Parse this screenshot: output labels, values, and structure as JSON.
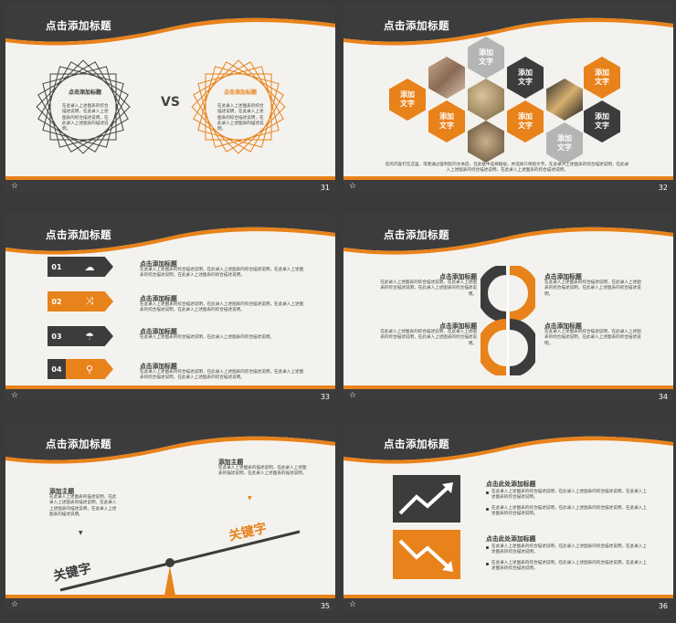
{
  "colors": {
    "accent": "#e8821a",
    "dark": "#3c3c3c",
    "bg": "#f4f2ee",
    "page": "#3a3a3a"
  },
  "slides": [
    {
      "number": "31",
      "title": "点击添加标题",
      "left_heading": "点击添加标题",
      "left_text": "在此录入上述图表的综合描述说明，在此录入上述图表的综合描述说明，在此录入上述图表的描述说明。",
      "vs": "VS",
      "right_heading": "点击添加标题",
      "right_text": "在此录入上述图表的综合描述说明，在此录入上述图表的综合描述说明，在此录入上述图表的描述说明。"
    },
    {
      "number": "32",
      "title": "点击添加标题",
      "hex_label": "添加\n文字",
      "caption": "您的内容打在这里，或者通过复制您的文本后，在此框中选择粘贴，并选择只保留文字。在此录入上述图表的综合描述说明，在此录入上述图表的综合描述说明，在此录入上述图表的综合描述说明。"
    },
    {
      "number": "33",
      "title": "点击添加标题",
      "items": [
        {
          "num": "01",
          "icon": "cloud-icon",
          "heading": "点击添加标题",
          "text": "在此录入上述图表的综合描述说明，在此录入上述图表的综合描述说明，在此录入上述图表的综合描述说明，在此录入上述图表的综合描述说明。"
        },
        {
          "num": "02",
          "icon": "shuffle-icon",
          "heading": "点击添加标题",
          "text": "在此录入上述图表的综合描述说明，在此录入上述图表的综合描述说明，在此录入上述图表的综合描述说明，在此录入上述图表的综合描述说明。"
        },
        {
          "num": "03",
          "icon": "umbrella-icon",
          "heading": "点击添加标题",
          "text": "在此录入上述图表的综合描述说明，在此录入上述图表的综合描述说明。"
        },
        {
          "num": "04",
          "icon": "search-icon",
          "heading": "点击添加标题",
          "text": "在此录入上述图表的综合描述说明，在此录入上述图表的综合描述说明，在此录入上述图表的综合描述说明，在此录入上述图表的综合描述说明。"
        }
      ]
    },
    {
      "number": "34",
      "title": "点击添加标题",
      "blocks": [
        {
          "heading": "点击添加标题",
          "text": "在此录入上述图表的综合描述说明，在此录入上述图表的综合描述说明，在此录入上述图表的综合描述说明。"
        },
        {
          "heading": "点击添加标题",
          "text": "在此录入上述图表的综合描述说明，在此录入上述图表的综合描述说明，在此录入上述图表的综合描述说明。"
        },
        {
          "heading": "点击添加标题",
          "text": "在此录入上述图表的综合描述说明，在此录入上述图表的综合描述说明，在此录入上述图表的综合描述说明。"
        },
        {
          "heading": "点击添加标题",
          "text": "在此录入上述图表的综合描述说明，在此录入上述图表的综合描述说明，在此录入上述图表的综合描述说明。"
        }
      ]
    },
    {
      "number": "35",
      "title": "点击添加标题",
      "left_heading": "添加主题",
      "left_text": "在此录入上述图表的描述说明，在此录入上述图表的描述说明，在此录入上述图表的描述说明，在此录入上述图表的描述说明。",
      "right_heading": "添加主题",
      "right_text": "在此录入上述图表的描述说明，在此录入上述图表的描述说明，在此录入上述图表的描述说明。",
      "keyword_left": "关键字",
      "keyword_right": "关键字"
    },
    {
      "number": "36",
      "title": "点击添加标题",
      "blocks": [
        {
          "heading": "点击此处添加标题",
          "bullets": [
            "在此录入上述图表的综合描述说明，在此录入上述图表的综合描述说明，在此录入上述图表的综合描述说明。",
            "在此录入上述图表的综合描述说明，在此录入上述图表的综合描述说明，在此录入上述图表的综合描述说明。"
          ]
        },
        {
          "heading": "点击此处添加标题",
          "bullets": [
            "在此录入上述图表的综合描述说明，在此录入上述图表的综合描述说明，在此录入上述图表的综合描述说明。",
            "在此录入上述图表的综合描述说明，在此录入上述图表的综合描述说明，在此录入上述图表的综合描述说明。"
          ]
        }
      ]
    }
  ],
  "footer_star": "☆"
}
